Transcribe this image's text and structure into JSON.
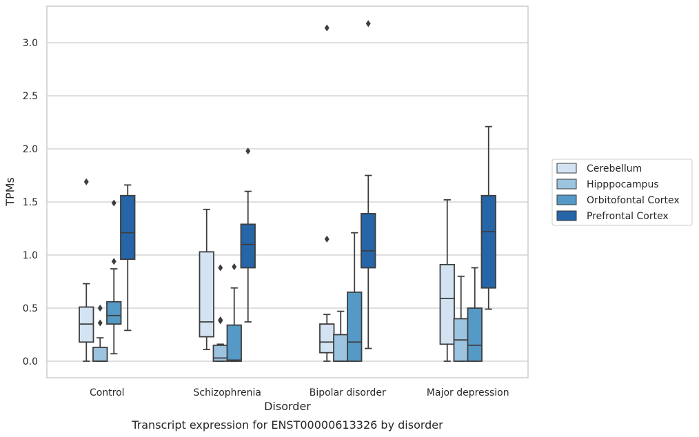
{
  "chart_data": {
    "type": "box",
    "caption": "Transcript expression for ENST00000613326 by disorder",
    "xlabel": "Disorder",
    "ylabel": "TPMs",
    "ylim": [
      -0.15,
      3.35
    ],
    "yticks": [
      0.0,
      0.5,
      1.0,
      1.5,
      2.0,
      2.5,
      3.0
    ],
    "ytick_labels": [
      "0.0",
      "0.5",
      "1.0",
      "1.5",
      "2.0",
      "2.5",
      "3.0"
    ],
    "grid": "horizontal",
    "legend_position": "right, outside plot",
    "categories": [
      "Control",
      "Schizophrenia",
      "Bipolar disorder",
      "Major depression"
    ],
    "series": [
      {
        "name": "Cerebellum",
        "color": "#d4e3f2",
        "boxes": [
          {
            "whislo": 0.0,
            "q1": 0.18,
            "med": 0.35,
            "q3": 0.51,
            "whishi": 0.73,
            "fliers": [
              1.69
            ]
          },
          {
            "whislo": 0.11,
            "q1": 0.23,
            "med": 0.37,
            "q3": 1.03,
            "whishi": 1.43,
            "fliers": []
          },
          {
            "whislo": 0.0,
            "q1": 0.08,
            "med": 0.18,
            "q3": 0.35,
            "whishi": 0.44,
            "fliers": [
              1.15,
              3.14
            ]
          },
          {
            "whislo": 0.0,
            "q1": 0.16,
            "med": 0.59,
            "q3": 0.91,
            "whishi": 1.52,
            "fliers": []
          }
        ]
      },
      {
        "name": "Hipppocampus",
        "color": "#9cc3df",
        "boxes": [
          {
            "whislo": 0.0,
            "q1": 0.0,
            "med": 0.0,
            "q3": 0.13,
            "whishi": 0.22,
            "fliers": [
              0.36,
              0.5
            ]
          },
          {
            "whislo": 0.0,
            "q1": 0.0,
            "med": 0.03,
            "q3": 0.15,
            "whishi": 0.16,
            "fliers": [
              0.38,
              0.39,
              0.88
            ]
          },
          {
            "whislo": 0.0,
            "q1": 0.0,
            "med": 0.0,
            "q3": 0.25,
            "whishi": 0.47,
            "fliers": []
          },
          {
            "whislo": 0.0,
            "q1": 0.0,
            "med": 0.2,
            "q3": 0.4,
            "whishi": 0.8,
            "fliers": []
          }
        ]
      },
      {
        "name": "Orbitofontal Cortex",
        "color": "#5599c6",
        "boxes": [
          {
            "whislo": 0.07,
            "q1": 0.35,
            "med": 0.43,
            "q3": 0.56,
            "whishi": 0.87,
            "fliers": [
              0.94,
              1.49
            ]
          },
          {
            "whislo": 0.0,
            "q1": 0.0,
            "med": 0.01,
            "q3": 0.34,
            "whishi": 0.69,
            "fliers": [
              0.89
            ]
          },
          {
            "whislo": 0.0,
            "q1": 0.0,
            "med": 0.18,
            "q3": 0.65,
            "whishi": 1.21,
            "fliers": []
          },
          {
            "whislo": 0.0,
            "q1": 0.0,
            "med": 0.15,
            "q3": 0.5,
            "whishi": 0.88,
            "fliers": []
          }
        ]
      },
      {
        "name": "Prefrontal Cortex",
        "color": "#2665a7",
        "boxes": [
          {
            "whislo": 0.29,
            "q1": 0.96,
            "med": 1.21,
            "q3": 1.56,
            "whishi": 1.66,
            "fliers": []
          },
          {
            "whislo": 0.37,
            "q1": 0.88,
            "med": 1.1,
            "q3": 1.29,
            "whishi": 1.6,
            "fliers": [
              1.98
            ]
          },
          {
            "whislo": 0.12,
            "q1": 0.88,
            "med": 1.04,
            "q3": 1.39,
            "whishi": 1.75,
            "fliers": [
              3.18
            ]
          },
          {
            "whislo": 0.49,
            "q1": 0.69,
            "med": 1.22,
            "q3": 1.56,
            "whishi": 2.21,
            "fliers": []
          }
        ]
      }
    ],
    "line_color": "#3d3d3d",
    "grid_color": "#cccccc",
    "frame_color": "#cccccc"
  }
}
